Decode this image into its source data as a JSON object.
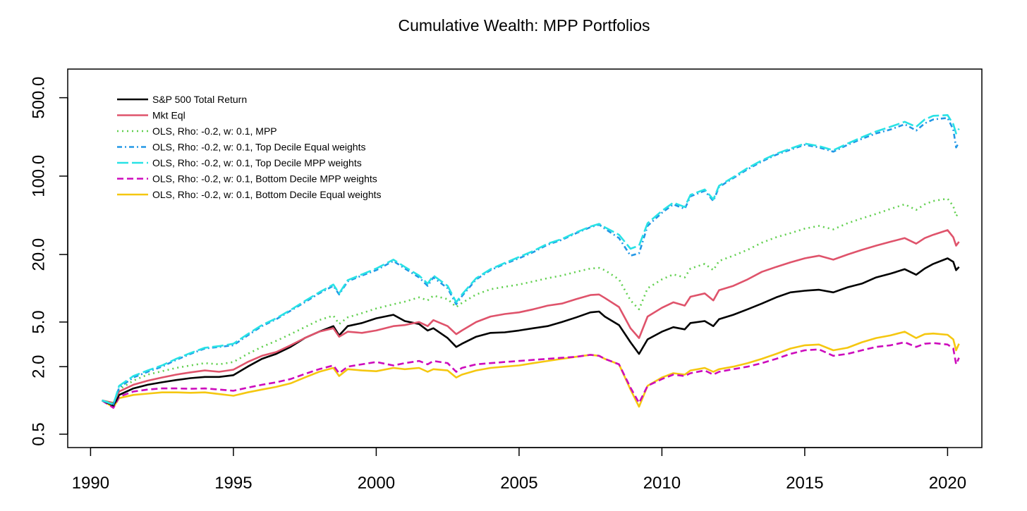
{
  "chart_data": {
    "type": "line",
    "title": "Cumulative Wealth: MPP Portfolios",
    "xlabel": "",
    "ylabel": "",
    "y_scale": "log",
    "xlim": [
      1989.2,
      2021.2
    ],
    "ylim": [
      0.38,
      900
    ],
    "x_ticks": [
      1990,
      1995,
      2000,
      2005,
      2010,
      2015,
      2020
    ],
    "x_tick_labels": [
      "1990",
      "1995",
      "2000",
      "2005",
      "2010",
      "2015",
      "2020"
    ],
    "y_ticks": [
      0.5,
      2,
      5,
      20,
      100,
      500
    ],
    "y_tick_labels": [
      "0.5",
      "2.0",
      "5.0",
      "20.0",
      "100.0",
      "500.0"
    ],
    "grid": false,
    "legend_position": "top-left",
    "series": [
      {
        "name": "S&P 500 Total Return",
        "color": "#000000",
        "dash": "solid",
        "x": [
          1990.4,
          1990.8,
          1991.0,
          1991.5,
          1992.0,
          1992.5,
          1993.0,
          1993.5,
          1994.0,
          1994.5,
          1995.0,
          1995.5,
          1996.0,
          1996.5,
          1997.0,
          1997.5,
          1998.0,
          1998.5,
          1998.7,
          1999.0,
          1999.5,
          2000.0,
          2000.6,
          2001.0,
          2001.5,
          2001.8,
          2002.0,
          2002.5,
          2002.8,
          2003.0,
          2003.5,
          2004.0,
          2004.5,
          2005.0,
          2005.5,
          2006.0,
          2006.5,
          2007.0,
          2007.5,
          2007.8,
          2008.0,
          2008.5,
          2008.9,
          2009.2,
          2009.5,
          2010.0,
          2010.4,
          2010.8,
          2011.0,
          2011.5,
          2011.8,
          2012.0,
          2012.5,
          2013.0,
          2013.5,
          2014.0,
          2014.5,
          2015.0,
          2015.5,
          2016.0,
          2016.5,
          2017.0,
          2017.5,
          2018.0,
          2018.5,
          2018.9,
          2019.2,
          2019.5,
          2020.0,
          2020.2,
          2020.3,
          2020.4
        ],
        "y": [
          1.0,
          0.9,
          1.12,
          1.28,
          1.38,
          1.45,
          1.52,
          1.58,
          1.62,
          1.62,
          1.68,
          2.0,
          2.35,
          2.6,
          3.0,
          3.6,
          4.1,
          4.6,
          3.8,
          4.6,
          4.9,
          5.4,
          5.8,
          5.1,
          4.8,
          4.2,
          4.4,
          3.6,
          3.0,
          3.2,
          3.7,
          4.0,
          4.05,
          4.2,
          4.4,
          4.6,
          5.0,
          5.5,
          6.1,
          6.2,
          5.6,
          4.7,
          3.3,
          2.6,
          3.5,
          4.1,
          4.5,
          4.3,
          4.9,
          5.1,
          4.6,
          5.3,
          5.8,
          6.5,
          7.3,
          8.3,
          9.2,
          9.5,
          9.7,
          9.2,
          10.2,
          11.0,
          12.5,
          13.5,
          14.8,
          13.2,
          15.0,
          16.5,
          18.5,
          17.2,
          14.5,
          15.5
        ]
      },
      {
        "name": "Mkt Eql",
        "color": "#df536b",
        "dash": "solid",
        "x": [
          1990.4,
          1990.8,
          1991.0,
          1991.5,
          1992.0,
          1992.5,
          1993.0,
          1993.5,
          1994.0,
          1994.5,
          1995.0,
          1995.5,
          1996.0,
          1996.5,
          1997.0,
          1997.5,
          1998.0,
          1998.5,
          1998.7,
          1999.0,
          1999.5,
          2000.0,
          2000.6,
          2001.0,
          2001.5,
          2001.8,
          2002.0,
          2002.5,
          2002.8,
          2003.0,
          2003.5,
          2004.0,
          2004.5,
          2005.0,
          2005.5,
          2006.0,
          2006.5,
          2007.0,
          2007.5,
          2007.8,
          2008.0,
          2008.5,
          2008.9,
          2009.2,
          2009.5,
          2010.0,
          2010.4,
          2010.8,
          2011.0,
          2011.5,
          2011.8,
          2012.0,
          2012.5,
          2013.0,
          2013.5,
          2014.0,
          2014.5,
          2015.0,
          2015.5,
          2016.0,
          2016.5,
          2017.0,
          2017.5,
          2018.0,
          2018.5,
          2018.9,
          2019.2,
          2019.5,
          2020.0,
          2020.2,
          2020.3,
          2020.4
        ],
        "y": [
          1.0,
          0.95,
          1.2,
          1.38,
          1.5,
          1.6,
          1.7,
          1.78,
          1.85,
          1.8,
          1.88,
          2.2,
          2.5,
          2.7,
          3.1,
          3.6,
          4.1,
          4.4,
          3.7,
          4.1,
          4.0,
          4.2,
          4.6,
          4.7,
          5.0,
          4.6,
          5.2,
          4.6,
          3.9,
          4.2,
          5.0,
          5.6,
          5.9,
          6.1,
          6.5,
          7.0,
          7.3,
          8.0,
          8.7,
          8.8,
          8.2,
          6.8,
          4.4,
          3.6,
          5.6,
          6.7,
          7.5,
          7.0,
          8.4,
          9.0,
          7.8,
          9.6,
          10.5,
          12.0,
          14.0,
          15.5,
          17.0,
          18.5,
          19.5,
          18.0,
          20.0,
          22.0,
          24.0,
          26.0,
          28.0,
          25.0,
          28.0,
          30.0,
          33.0,
          28.5,
          24.0,
          26.0
        ]
      },
      {
        "name": "OLS, Rho: -0.2, w: 0.1, MPP",
        "color": "#61d04f",
        "dash": "dotted",
        "x": [
          1990.4,
          1990.8,
          1991.0,
          1991.5,
          1992.0,
          1992.5,
          1993.0,
          1993.5,
          1994.0,
          1994.5,
          1995.0,
          1995.5,
          1996.0,
          1996.5,
          1997.0,
          1997.5,
          1998.0,
          1998.5,
          1998.7,
          1999.0,
          1999.5,
          2000.0,
          2000.6,
          2001.0,
          2001.5,
          2001.8,
          2002.0,
          2002.5,
          2002.8,
          2003.0,
          2003.5,
          2004.0,
          2004.5,
          2005.0,
          2005.5,
          2006.0,
          2006.5,
          2007.0,
          2007.5,
          2007.8,
          2008.0,
          2008.5,
          2008.9,
          2009.2,
          2009.5,
          2010.0,
          2010.4,
          2010.8,
          2011.0,
          2011.5,
          2011.8,
          2012.0,
          2012.5,
          2013.0,
          2013.5,
          2014.0,
          2014.5,
          2015.0,
          2015.5,
          2016.0,
          2016.5,
          2017.0,
          2017.5,
          2018.0,
          2018.5,
          2018.9,
          2019.2,
          2019.5,
          2020.0,
          2020.2,
          2020.3,
          2020.4
        ],
        "y": [
          1.0,
          0.95,
          1.25,
          1.5,
          1.7,
          1.82,
          1.95,
          2.05,
          2.15,
          2.1,
          2.2,
          2.6,
          3.0,
          3.4,
          3.9,
          4.5,
          5.2,
          5.7,
          4.8,
          5.5,
          6.0,
          6.6,
          7.2,
          7.6,
          8.3,
          7.8,
          8.6,
          8.0,
          6.8,
          7.4,
          8.8,
          9.8,
          10.3,
          10.8,
          11.5,
          12.3,
          13.0,
          14.0,
          15.0,
          15.2,
          14.5,
          12.0,
          7.8,
          6.5,
          10.0,
          12.0,
          13.3,
          12.5,
          15.0,
          16.5,
          14.5,
          17.5,
          19.5,
          22.0,
          25.5,
          28.5,
          31.0,
          34.0,
          36.0,
          33.5,
          38.0,
          42.0,
          46.0,
          51.0,
          56.0,
          50.0,
          56.0,
          60.0,
          63.0,
          54.0,
          44.0,
          47.0
        ]
      },
      {
        "name": "OLS, Rho: -0.2, w: 0.1, Top Decile Equal weights",
        "color": "#2297e6",
        "dash": "dashdot",
        "x": [
          1990.4,
          1990.8,
          1991.0,
          1991.5,
          1992.0,
          1992.5,
          1993.0,
          1993.5,
          1994.0,
          1994.5,
          1995.0,
          1995.5,
          1996.0,
          1996.5,
          1997.0,
          1997.5,
          1998.0,
          1998.5,
          1998.7,
          1999.0,
          1999.5,
          2000.0,
          2000.6,
          2001.0,
          2001.5,
          2001.8,
          2002.0,
          2002.5,
          2002.8,
          2003.0,
          2003.5,
          2004.0,
          2004.5,
          2005.0,
          2005.5,
          2006.0,
          2006.5,
          2007.0,
          2007.5,
          2007.8,
          2008.0,
          2008.5,
          2008.9,
          2009.2,
          2009.5,
          2010.0,
          2010.4,
          2010.8,
          2011.0,
          2011.5,
          2011.8,
          2012.0,
          2012.5,
          2013.0,
          2013.5,
          2014.0,
          2014.5,
          2015.0,
          2015.5,
          2016.0,
          2016.5,
          2017.0,
          2017.5,
          2018.0,
          2018.5,
          2018.9,
          2019.2,
          2019.5,
          2020.0,
          2020.2,
          2020.3,
          2020.4
        ],
        "y": [
          1.0,
          0.92,
          1.3,
          1.6,
          1.8,
          2.0,
          2.3,
          2.6,
          2.9,
          3.0,
          3.1,
          3.8,
          4.6,
          5.3,
          6.3,
          7.5,
          9.0,
          10.5,
          8.8,
          11.5,
          13.0,
          14.5,
          17.5,
          15.0,
          12.5,
          10.5,
          12.5,
          10.0,
          7.2,
          8.5,
          12.0,
          14.5,
          16.5,
          18.5,
          21.0,
          24.5,
          27.0,
          31.0,
          35.0,
          37.0,
          34.0,
          28.0,
          19.5,
          20.5,
          36.0,
          47.0,
          56.0,
          51.0,
          66.0,
          74.0,
          60.0,
          80.0,
          96.0,
          115.0,
          135.0,
          155.0,
          172.0,
          190.0,
          180.0,
          165.0,
          190.0,
          215.0,
          240.0,
          260.0,
          290.0,
          255.0,
          295.0,
          320.0,
          330.0,
          260.0,
          180.0,
          200.0
        ]
      },
      {
        "name": "OLS, Rho: -0.2, w: 0.1, Top Decile MPP weights",
        "color": "#28e2e5",
        "dash": "longdash",
        "x": [
          1990.4,
          1990.8,
          1991.0,
          1991.5,
          1992.0,
          1992.5,
          1993.0,
          1993.5,
          1994.0,
          1994.5,
          1995.0,
          1995.5,
          1996.0,
          1996.5,
          1997.0,
          1997.5,
          1998.0,
          1998.5,
          1998.7,
          1999.0,
          1999.5,
          2000.0,
          2000.6,
          2001.0,
          2001.5,
          2001.8,
          2002.0,
          2002.5,
          2002.8,
          2003.0,
          2003.5,
          2004.0,
          2004.5,
          2005.0,
          2005.5,
          2006.0,
          2006.5,
          2007.0,
          2007.5,
          2007.8,
          2008.0,
          2008.5,
          2008.9,
          2009.2,
          2009.5,
          2010.0,
          2010.4,
          2010.8,
          2011.0,
          2011.5,
          2011.8,
          2012.0,
          2012.5,
          2013.0,
          2013.5,
          2014.0,
          2014.5,
          2015.0,
          2015.5,
          2016.0,
          2016.5,
          2017.0,
          2017.5,
          2018.0,
          2018.5,
          2018.9,
          2019.2,
          2019.5,
          2020.0,
          2020.2,
          2020.3,
          2020.4
        ],
        "y": [
          1.0,
          0.92,
          1.35,
          1.65,
          1.85,
          2.05,
          2.35,
          2.65,
          2.95,
          3.05,
          3.2,
          3.9,
          4.7,
          5.4,
          6.4,
          7.7,
          9.2,
          10.8,
          9.0,
          11.8,
          13.3,
          15.0,
          18.0,
          15.5,
          13.0,
          11.0,
          13.0,
          10.5,
          7.5,
          8.8,
          12.3,
          14.8,
          16.8,
          19.0,
          21.5,
          25.0,
          27.5,
          31.5,
          35.5,
          37.5,
          35.0,
          30.0,
          22.5,
          24.0,
          38.0,
          49.0,
          58.0,
          53.0,
          68.0,
          76.0,
          62.0,
          82.0,
          98.0,
          118.0,
          138.0,
          158.0,
          176.0,
          195.0,
          185.0,
          170.0,
          195.0,
          222.0,
          250.0,
          275.0,
          305.0,
          275.0,
          320.0,
          345.0,
          350.0,
          290.0,
          240.0,
          265.0
        ]
      },
      {
        "name": "OLS, Rho: -0.2, w: 0.1, Bottom Decile MPP weights",
        "color": "#cd0bbc",
        "dash": "dashed",
        "x": [
          1990.4,
          1990.8,
          1991.0,
          1991.5,
          1992.0,
          1992.5,
          1993.0,
          1993.5,
          1994.0,
          1994.5,
          1995.0,
          1995.5,
          1996.0,
          1996.5,
          1997.0,
          1997.5,
          1998.0,
          1998.5,
          1998.7,
          1999.0,
          1999.5,
          2000.0,
          2000.6,
          2001.0,
          2001.5,
          2001.8,
          2002.0,
          2002.5,
          2002.8,
          2003.0,
          2003.5,
          2004.0,
          2004.5,
          2005.0,
          2005.5,
          2006.0,
          2006.5,
          2007.0,
          2007.5,
          2007.8,
          2008.0,
          2008.5,
          2008.9,
          2009.2,
          2009.5,
          2010.0,
          2010.4,
          2010.8,
          2011.0,
          2011.5,
          2011.8,
          2012.0,
          2012.5,
          2013.0,
          2013.5,
          2014.0,
          2014.5,
          2015.0,
          2015.5,
          2016.0,
          2016.5,
          2017.0,
          2017.5,
          2018.0,
          2018.5,
          2018.9,
          2019.2,
          2019.5,
          2020.0,
          2020.2,
          2020.3,
          2020.4
        ],
        "y": [
          1.0,
          0.86,
          1.08,
          1.2,
          1.25,
          1.28,
          1.28,
          1.27,
          1.28,
          1.25,
          1.22,
          1.3,
          1.38,
          1.45,
          1.55,
          1.72,
          1.9,
          2.05,
          1.75,
          2.0,
          2.1,
          2.2,
          2.05,
          2.15,
          2.25,
          2.1,
          2.25,
          2.15,
          1.8,
          1.95,
          2.1,
          2.15,
          2.2,
          2.25,
          2.3,
          2.35,
          2.4,
          2.45,
          2.55,
          2.5,
          2.35,
          2.1,
          1.3,
          0.95,
          1.35,
          1.55,
          1.7,
          1.65,
          1.75,
          1.85,
          1.7,
          1.8,
          1.9,
          2.0,
          2.15,
          2.35,
          2.6,
          2.8,
          2.85,
          2.5,
          2.6,
          2.8,
          3.0,
          3.1,
          3.3,
          3.0,
          3.2,
          3.25,
          3.15,
          2.9,
          2.1,
          2.4
        ]
      },
      {
        "name": "OLS, Rho: -0.2, w: 0.1, Bottom Decile Equal weights",
        "color": "#f5c710",
        "dash": "solid",
        "x": [
          1990.4,
          1990.8,
          1991.0,
          1991.5,
          1992.0,
          1992.5,
          1993.0,
          1993.5,
          1994.0,
          1994.5,
          1995.0,
          1995.5,
          1996.0,
          1996.5,
          1997.0,
          1997.5,
          1998.0,
          1998.5,
          1998.7,
          1999.0,
          1999.5,
          2000.0,
          2000.6,
          2001.0,
          2001.5,
          2001.8,
          2002.0,
          2002.5,
          2002.8,
          2003.0,
          2003.5,
          2004.0,
          2004.5,
          2005.0,
          2005.5,
          2006.0,
          2006.5,
          2007.0,
          2007.5,
          2007.8,
          2008.0,
          2008.5,
          2008.9,
          2009.2,
          2009.5,
          2010.0,
          2010.4,
          2010.8,
          2011.0,
          2011.5,
          2011.8,
          2012.0,
          2012.5,
          2013.0,
          2013.5,
          2014.0,
          2014.5,
          2015.0,
          2015.5,
          2016.0,
          2016.5,
          2017.0,
          2017.5,
          2018.0,
          2018.5,
          2018.9,
          2019.2,
          2019.5,
          2020.0,
          2020.2,
          2020.3,
          2020.4
        ],
        "y": [
          1.0,
          0.87,
          1.05,
          1.12,
          1.15,
          1.18,
          1.18,
          1.17,
          1.18,
          1.14,
          1.1,
          1.18,
          1.25,
          1.32,
          1.42,
          1.6,
          1.8,
          1.95,
          1.65,
          1.9,
          1.85,
          1.82,
          1.95,
          1.9,
          1.95,
          1.8,
          1.9,
          1.85,
          1.6,
          1.7,
          1.85,
          1.95,
          2.0,
          2.05,
          2.15,
          2.25,
          2.35,
          2.45,
          2.55,
          2.5,
          2.35,
          2.1,
          1.25,
          0.88,
          1.35,
          1.6,
          1.75,
          1.7,
          1.85,
          1.95,
          1.8,
          1.9,
          2.0,
          2.15,
          2.35,
          2.6,
          2.9,
          3.1,
          3.15,
          2.8,
          2.95,
          3.3,
          3.6,
          3.8,
          4.1,
          3.6,
          3.9,
          3.95,
          3.85,
          3.5,
          2.8,
          3.2
        ]
      }
    ]
  }
}
